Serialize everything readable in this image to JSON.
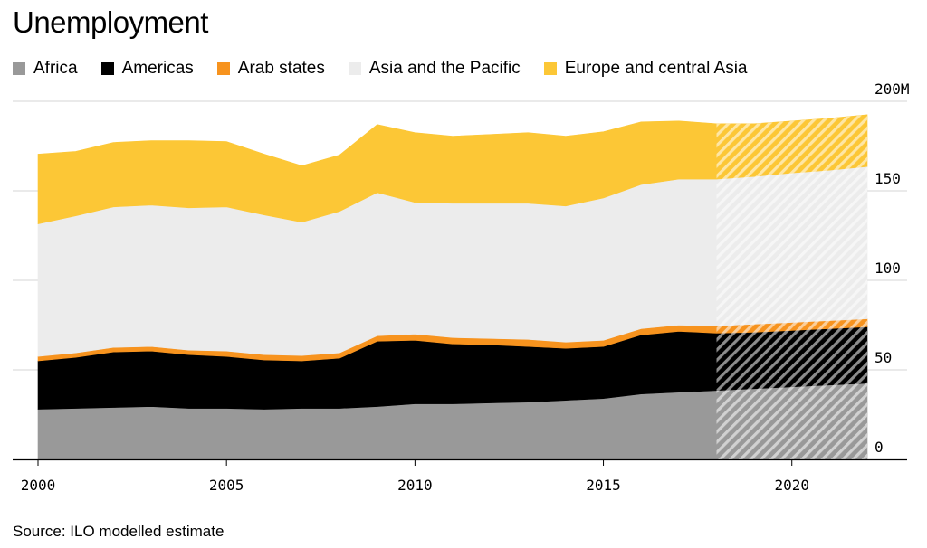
{
  "header": {
    "title": "Unemployment"
  },
  "source": "Source: ILO modelled estimate",
  "chart_data": {
    "type": "area",
    "stacked": true,
    "title": "Unemployment",
    "x": [
      2000,
      2001,
      2002,
      2003,
      2004,
      2005,
      2006,
      2007,
      2008,
      2009,
      2010,
      2011,
      2012,
      2013,
      2014,
      2015,
      2016,
      2017,
      2018,
      2019,
      2020,
      2021,
      2022
    ],
    "projection_from": 2018,
    "series": [
      {
        "name": "Africa",
        "color": "#999999",
        "values": [
          28,
          28.5,
          29,
          29.5,
          28.5,
          28.5,
          28,
          28.5,
          28.5,
          29.5,
          31,
          31,
          31.5,
          32,
          33,
          34,
          36.5,
          37.5,
          38.5,
          39.5,
          40.5,
          41.5,
          42.5
        ]
      },
      {
        "name": "Americas",
        "color": "#000000",
        "values": [
          27,
          28.5,
          31,
          31,
          30,
          29,
          27.5,
          26.5,
          28,
          36.5,
          35.5,
          33.5,
          32.5,
          31,
          29,
          29,
          33,
          34,
          32,
          31.5,
          31.5,
          31.5,
          31.5
        ]
      },
      {
        "name": "Arab states",
        "color": "#f7931e",
        "values": [
          2.5,
          2.5,
          2.5,
          2.5,
          2.5,
          3,
          3,
          3,
          3,
          3,
          3.5,
          3.5,
          3.5,
          4,
          3.5,
          3.5,
          3.5,
          3.5,
          4,
          4.5,
          4.5,
          4.5,
          4.5
        ]
      },
      {
        "name": "Asia and the Pacific",
        "color": "#ececec",
        "values": [
          74,
          76.5,
          78.5,
          79,
          79.5,
          80.5,
          78,
          74.5,
          79,
          80,
          73.5,
          75,
          75.5,
          76,
          76,
          79.5,
          80.5,
          81.5,
          82,
          82.5,
          83.5,
          84,
          85
        ]
      },
      {
        "name": "Europe and central Asia",
        "color": "#fcc736",
        "values": [
          39,
          36,
          36,
          36,
          37.5,
          36.5,
          34,
          31.5,
          31.5,
          38,
          39,
          37.5,
          38.5,
          39.5,
          39,
          37,
          35,
          32.5,
          31,
          29.5,
          29,
          29,
          29
        ]
      }
    ],
    "xlabel": "",
    "ylabel": "",
    "xticks": [
      2000,
      2005,
      2010,
      2015,
      2020
    ],
    "yticks": [
      0,
      50,
      100,
      150,
      200
    ],
    "ytick_labels": [
      "0",
      "50",
      "100",
      "150",
      "200M"
    ],
    "xlim": [
      2000,
      2022
    ],
    "ylim": [
      0,
      200
    ],
    "grid": true,
    "legend_position": "top"
  }
}
